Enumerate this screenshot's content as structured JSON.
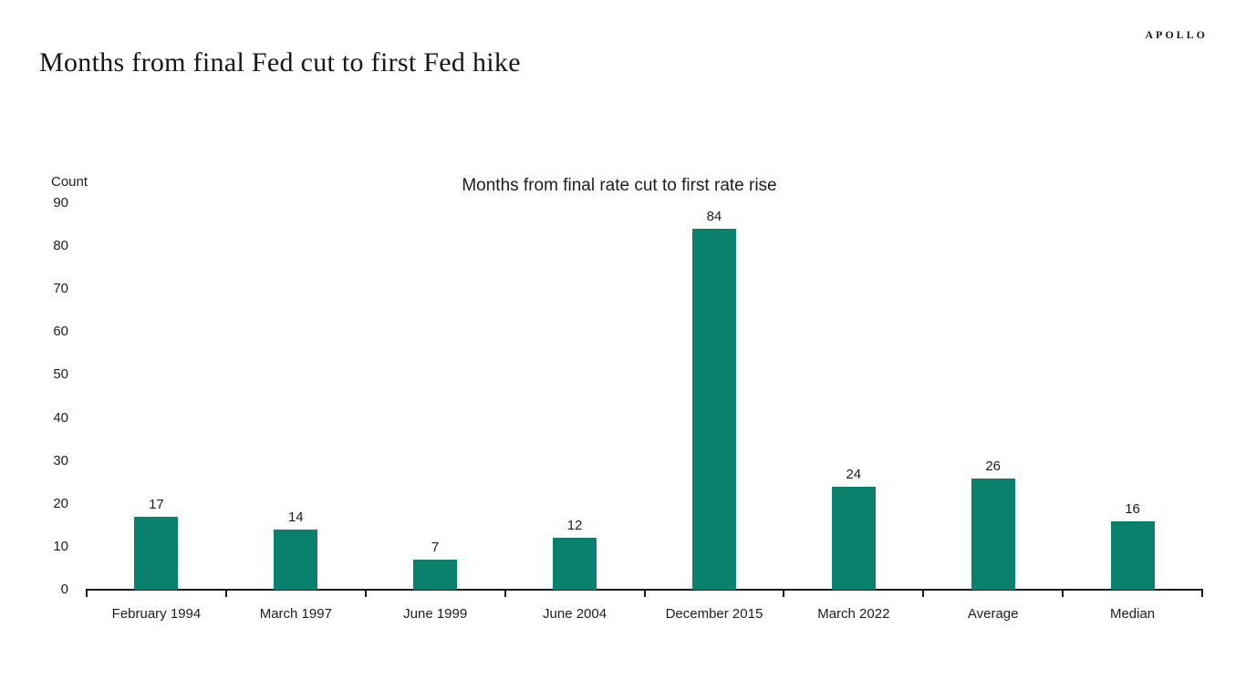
{
  "branding": {
    "logo_text": "APOLLO"
  },
  "header": {
    "title": "Months from final Fed cut to first Fed hike"
  },
  "chart_data": {
    "type": "bar",
    "title": "Months from final rate cut to first rate rise",
    "ylabel": "Count",
    "xlabel": "",
    "categories": [
      "February 1994",
      "March 1997",
      "June 1999",
      "June 2004",
      "December 2015",
      "March 2022",
      "Average",
      "Median"
    ],
    "values": [
      17,
      14,
      7,
      12,
      84,
      24,
      26,
      16
    ],
    "ylim": [
      0,
      90
    ],
    "ytick_interval": 10,
    "bar_color": "#0a816c",
    "axis_color": "#1a1a1a",
    "grid": false,
    "legend_position": "none",
    "value_labels_shown": true
  }
}
